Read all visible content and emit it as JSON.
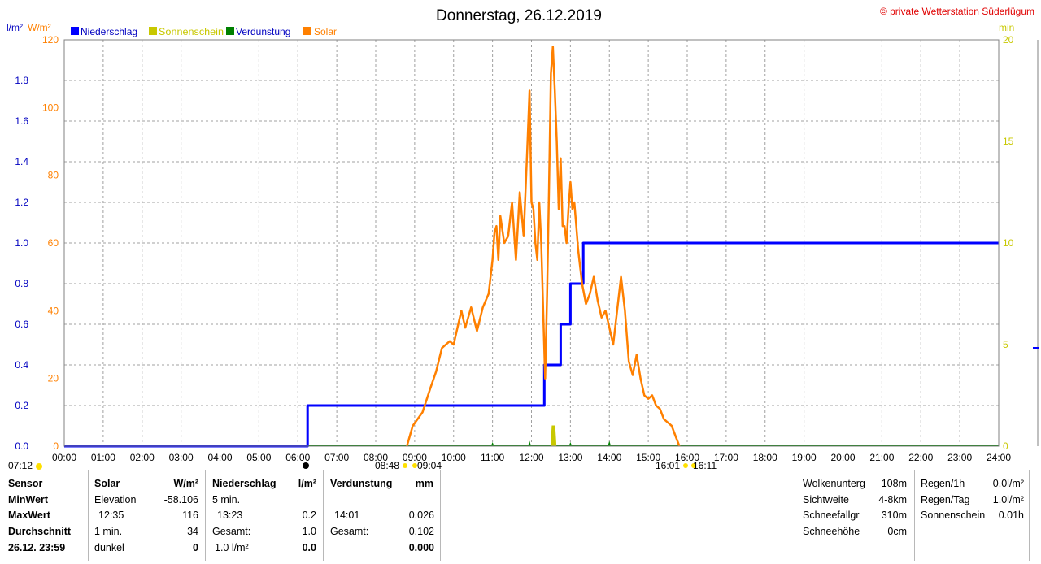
{
  "title": "Donnerstag, 26.12.2019",
  "copyright": "© private Wetterstation Süderlügum",
  "units": {
    "left_blue": "l/m²",
    "left_orange": "W/m²",
    "right": "min"
  },
  "legend": [
    {
      "name": "Niederschlag",
      "color": "#0000ff"
    },
    {
      "name": "Sonnenschein",
      "color": "#c8c800"
    },
    {
      "name": "Verdunstung",
      "color": "#008000"
    },
    {
      "name": "Solar",
      "color": "#ff8000"
    }
  ],
  "markers": {
    "sunrise_prev": "07:12",
    "solar_start": "08:48",
    "solar_start2": "09:04",
    "solar_end": "16:01",
    "solar_end2": "16:11"
  },
  "chart_data": {
    "type": "line",
    "x_axis": {
      "min": 0,
      "max": 24,
      "unit": "hours",
      "tick_labels": [
        "00:00",
        "01:00",
        "02:00",
        "03:00",
        "04:00",
        "05:00",
        "06:00",
        "07:00",
        "08:00",
        "09:00",
        "10:00",
        "11:00",
        "12:00",
        "13:00",
        "14:00",
        "15:00",
        "16:00",
        "17:00",
        "18:00",
        "19:00",
        "20:00",
        "21:00",
        "22:00",
        "23:00",
        "24:00"
      ]
    },
    "y_left_blue": {
      "min": 0,
      "max": 2.0,
      "ticks": [
        "0.0",
        "0.2",
        "0.4",
        "0.6",
        "0.8",
        "1.0",
        "1.2",
        "1.4",
        "1.6",
        "1.8"
      ]
    },
    "y_left_orange": {
      "min": 0,
      "max": 120,
      "ticks": [
        "0",
        "20",
        "40",
        "60",
        "80",
        "100",
        "120"
      ]
    },
    "y_right": {
      "min": 0,
      "max": 20,
      "ticks": [
        "0",
        "5",
        "10",
        "15",
        "20"
      ]
    },
    "grid": true,
    "series": [
      {
        "name": "Niederschlag",
        "color": "#0000ff",
        "axis": "left_blue",
        "kind": "step",
        "points": [
          [
            0,
            0
          ],
          [
            6.25,
            0
          ],
          [
            6.25,
            0.2
          ],
          [
            12.33,
            0.2
          ],
          [
            12.33,
            0.4
          ],
          [
            12.75,
            0.4
          ],
          [
            12.75,
            0.6
          ],
          [
            13.0,
            0.6
          ],
          [
            13.0,
            0.8
          ],
          [
            13.33,
            0.8
          ],
          [
            13.33,
            1.0
          ],
          [
            24,
            1.0
          ]
        ]
      },
      {
        "name": "Solar",
        "color": "#ff8000",
        "axis": "left_orange",
        "kind": "line",
        "points": [
          [
            8.8,
            0
          ],
          [
            8.95,
            6
          ],
          [
            9.2,
            10
          ],
          [
            9.4,
            17
          ],
          [
            9.55,
            22
          ],
          [
            9.7,
            29
          ],
          [
            9.9,
            31
          ],
          [
            10.0,
            30
          ],
          [
            10.1,
            35
          ],
          [
            10.2,
            40
          ],
          [
            10.3,
            35
          ],
          [
            10.45,
            41
          ],
          [
            10.6,
            34
          ],
          [
            10.75,
            41
          ],
          [
            10.9,
            45
          ],
          [
            11.0,
            55
          ],
          [
            11.05,
            63
          ],
          [
            11.1,
            65
          ],
          [
            11.15,
            55
          ],
          [
            11.2,
            68
          ],
          [
            11.3,
            60
          ],
          [
            11.4,
            62
          ],
          [
            11.5,
            72
          ],
          [
            11.6,
            55
          ],
          [
            11.7,
            75
          ],
          [
            11.8,
            62
          ],
          [
            11.9,
            90
          ],
          [
            11.95,
            105
          ],
          [
            12.0,
            72
          ],
          [
            12.05,
            70
          ],
          [
            12.1,
            60
          ],
          [
            12.15,
            55
          ],
          [
            12.2,
            72
          ],
          [
            12.25,
            60
          ],
          [
            12.3,
            40
          ],
          [
            12.35,
            20
          ],
          [
            12.4,
            45
          ],
          [
            12.45,
            75
          ],
          [
            12.5,
            110
          ],
          [
            12.55,
            118
          ],
          [
            12.6,
            105
          ],
          [
            12.65,
            90
          ],
          [
            12.7,
            70
          ],
          [
            12.75,
            85
          ],
          [
            12.8,
            65
          ],
          [
            12.85,
            65
          ],
          [
            12.9,
            60
          ],
          [
            12.95,
            70
          ],
          [
            13.0,
            78
          ],
          [
            13.05,
            70
          ],
          [
            13.1,
            72
          ],
          [
            13.15,
            65
          ],
          [
            13.2,
            58
          ],
          [
            13.3,
            48
          ],
          [
            13.4,
            42
          ],
          [
            13.5,
            45
          ],
          [
            13.6,
            50
          ],
          [
            13.7,
            43
          ],
          [
            13.8,
            38
          ],
          [
            13.9,
            40
          ],
          [
            14.0,
            35
          ],
          [
            14.1,
            30
          ],
          [
            14.2,
            40
          ],
          [
            14.3,
            50
          ],
          [
            14.4,
            40
          ],
          [
            14.5,
            25
          ],
          [
            14.6,
            21
          ],
          [
            14.7,
            27
          ],
          [
            14.8,
            20
          ],
          [
            14.9,
            15
          ],
          [
            15.0,
            14
          ],
          [
            15.1,
            15
          ],
          [
            15.2,
            12
          ],
          [
            15.3,
            11
          ],
          [
            15.4,
            8
          ],
          [
            15.5,
            7
          ],
          [
            15.6,
            6
          ],
          [
            15.7,
            3
          ],
          [
            15.8,
            0
          ]
        ]
      },
      {
        "name": "Sonnenschein",
        "color": "#c8c800",
        "axis": "right",
        "kind": "bar",
        "points": [
          [
            12.5,
            0.0
          ],
          [
            12.53,
            1.0
          ],
          [
            12.6,
            1.0
          ],
          [
            12.63,
            0.0
          ]
        ]
      },
      {
        "name": "Verdunstung",
        "color": "#008000",
        "axis": "left_blue",
        "kind": "spike",
        "points": [
          [
            11.0,
            0.02
          ],
          [
            11.95,
            0.026
          ],
          [
            13.0,
            0.02
          ],
          [
            14.0,
            0.026
          ]
        ]
      }
    ]
  },
  "table": {
    "rows": {
      "sensor": "Sensor",
      "minwert": "MinWert",
      "maxwert": "MaxWert",
      "durchschnitt": "Durchschnitt",
      "stamp": "26.12. 23:59"
    },
    "solar": {
      "title": "Solar",
      "unit": "W/m²",
      "r1_label": "Elevation",
      "r1_value": "-58.106",
      "r2_label": "12:35",
      "r2_value": "116",
      "r3_label": "1 min.",
      "r3_value": "34",
      "r4_label": "dunkel",
      "r4_value": "0"
    },
    "niederschlag": {
      "title": "Niederschlag",
      "unit": "l/m²",
      "r1_label": "5 min.",
      "r2_label": "13:23",
      "r2_value": "0.2",
      "r3_label": "Gesamt:",
      "r3_value": "1.0",
      "r4_label": "1.0 l/m²",
      "r4_value": "0.0"
    },
    "verdunstung": {
      "title": "Verdunstung",
      "unit": "mm",
      "r2_label": "14:01",
      "r2_value": "0.026",
      "r3_label": "Gesamt:",
      "r3_value": "0.102",
      "r4_value": "0.000"
    },
    "weather": {
      "wolkenuntergrenze_label": "Wolkenunterg",
      "wolkenuntergrenze_value": "108m",
      "sichtweite_label": "Sichtweite",
      "sichtweite_value": "4-8km",
      "schneefallgrenze_label": "Schneefallgr",
      "schneefallgrenze_value": "310m",
      "schneehoehe_label": "Schneehöhe",
      "schneehoehe_value": "0cm"
    },
    "rain": {
      "regen_1h_label": "Regen/1h",
      "regen_1h_value": "0.0l/m²",
      "regen_tag_label": "Regen/Tag",
      "regen_tag_value": "1.0l/m²",
      "sonnenschein_label": "Sonnenschein",
      "sonnenschein_value": "0.01h"
    }
  }
}
